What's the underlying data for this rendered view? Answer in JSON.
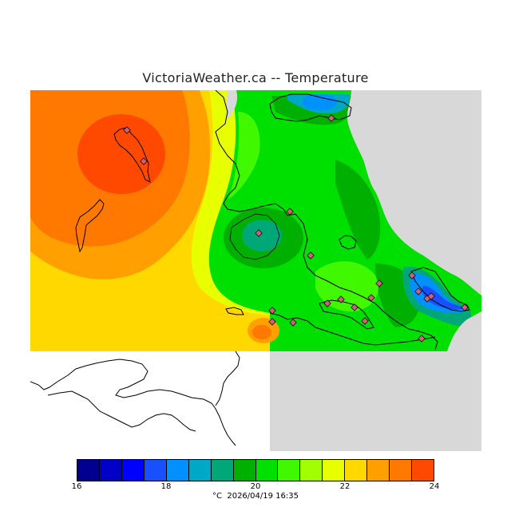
{
  "title": "VictoriaWeather.ca -- Temperature",
  "legend": {
    "unit": "°C",
    "timestamp": "2026/04/19 16:35",
    "ticks": [
      "16",
      "18",
      "20",
      "22",
      "24"
    ],
    "min": 16,
    "max": 24,
    "step": 0.5,
    "colors": [
      "#000090",
      "#0000c8",
      "#0000ff",
      "#1850ff",
      "#0090ff",
      "#00a8c8",
      "#00a878",
      "#00b000",
      "#00e000",
      "#40f800",
      "#a0ff00",
      "#e8ff00",
      "#ffd800",
      "#ffa000",
      "#ff7800",
      "#ff4800",
      "#ff0000"
    ]
  },
  "map": {
    "outside_color": "#d8d8d8",
    "water_color": "#ffffff",
    "station_fill": "#d06078",
    "station_count": 21
  }
}
